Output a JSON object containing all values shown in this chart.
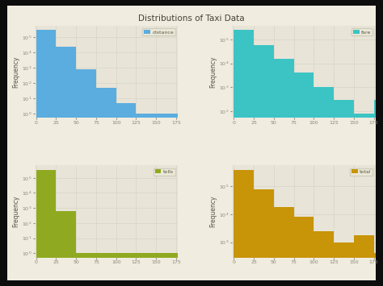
{
  "title": "Distributions of Taxi Data",
  "fig_bg": "#f0ece0",
  "axes_bg": "#e8e4d8",
  "outer_bg": "#1a1a1a",
  "subplots": [
    {
      "label": "distance",
      "color": "#5aadde",
      "bins": [
        0,
        25,
        50,
        75,
        100,
        125,
        150,
        175
      ],
      "counts": [
        300000,
        25000,
        800,
        50,
        5,
        1,
        1,
        1
      ]
    },
    {
      "label": "fare",
      "color": "#3cc4c4",
      "bins": [
        0,
        25,
        50,
        75,
        100,
        125,
        150,
        175
      ],
      "counts": [
        250000,
        60000,
        15000,
        4000,
        1000,
        300,
        80,
        300
      ]
    },
    {
      "label": "tolls",
      "color": "#8faa20",
      "bins": [
        0,
        25,
        50,
        75,
        100,
        125,
        150,
        175
      ],
      "counts": [
        350000,
        600,
        1,
        1,
        1,
        1,
        1,
        1
      ]
    },
    {
      "label": "total",
      "color": "#c89408",
      "bins": [
        0,
        25,
        50,
        75,
        100,
        125,
        150,
        175
      ],
      "counts": [
        400000,
        80000,
        18000,
        8000,
        2500,
        1000,
        1800,
        400
      ]
    }
  ],
  "grid_color": "#d8d4c4",
  "tick_color": "#888877",
  "label_color": "#555544",
  "title_color": "#444433",
  "xticks": [
    0,
    25,
    50,
    75,
    100,
    125,
    150,
    175
  ],
  "ylabel": "Frequency",
  "title_fontsize": 7.5,
  "tick_fontsize": 5,
  "ylabel_fontsize": 5.5
}
